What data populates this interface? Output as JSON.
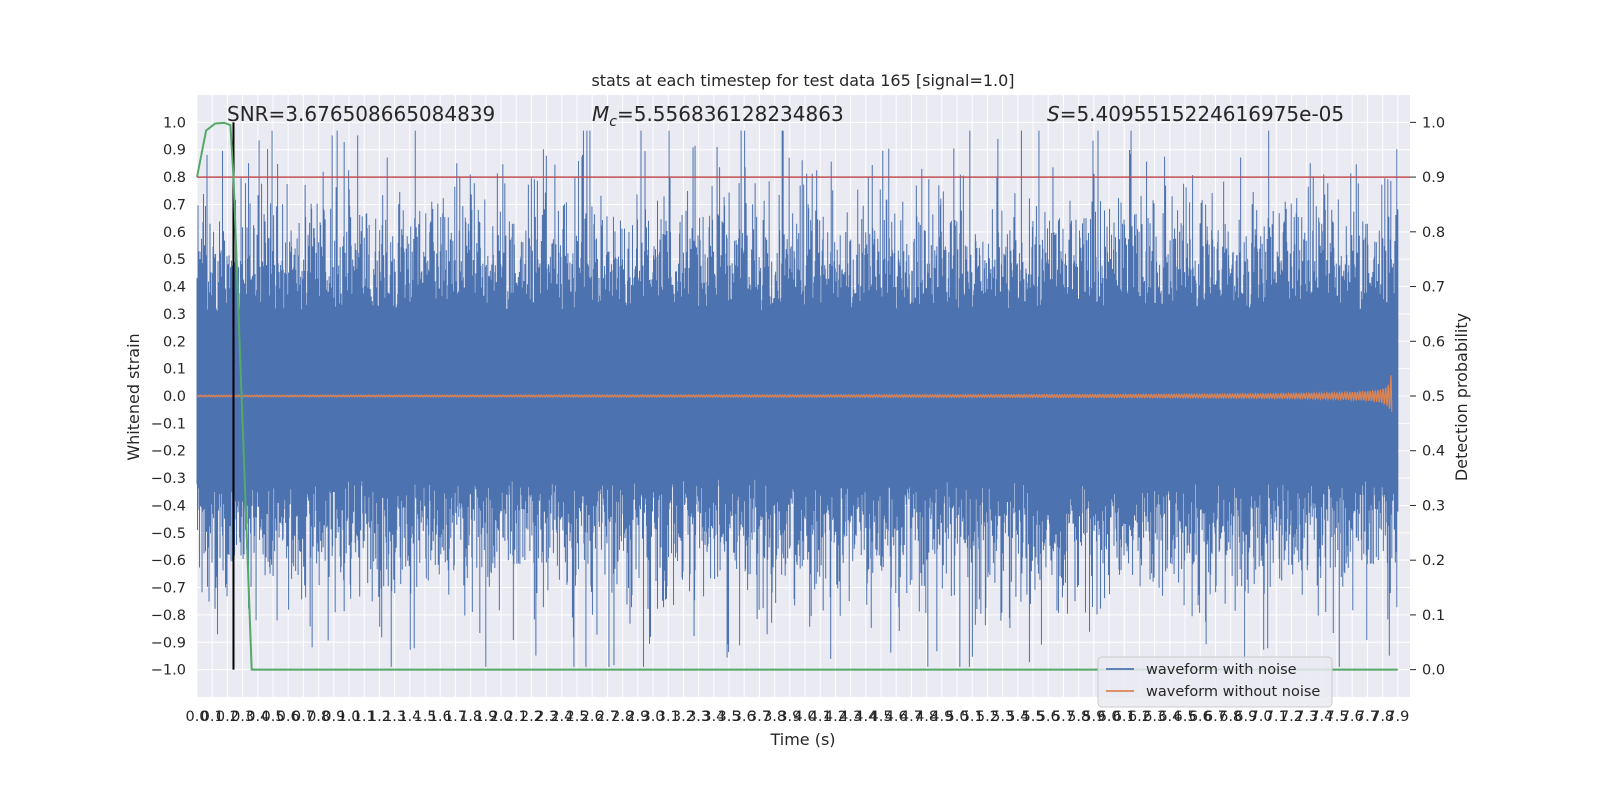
{
  "chart_data": {
    "type": "line",
    "title": "stats at each timestep for test data 165 [signal=1.0]",
    "xlabel": "Time (s)",
    "ylabel_left": "Whitened strain",
    "ylabel_right": "Detection probability",
    "xlim": [
      0.0,
      7.98
    ],
    "ylim_left": [
      -1.1,
      1.1
    ],
    "ylim_right": [
      -0.05,
      1.05
    ],
    "x_ticks": [
      0.0,
      0.1,
      0.2,
      0.3,
      0.4,
      0.5,
      0.6,
      0.7,
      0.8,
      0.9,
      1.0,
      1.1,
      1.2,
      1.3,
      1.4,
      1.5,
      1.6,
      1.7,
      1.8,
      1.9,
      2.0,
      2.1,
      2.2,
      2.3,
      2.4,
      2.5,
      2.6,
      2.7,
      2.8,
      2.9,
      3.0,
      3.1,
      3.2,
      3.3,
      3.4,
      3.5,
      3.6,
      3.7,
      3.8,
      3.9,
      4.0,
      4.1,
      4.2,
      4.3,
      4.4,
      4.5,
      4.6,
      4.7,
      4.8,
      4.9,
      5.0,
      5.1,
      5.2,
      5.3,
      5.4,
      5.5,
      5.6,
      5.7,
      5.8,
      5.9,
      6.0,
      6.1,
      6.2,
      6.3,
      6.4,
      6.5,
      6.6,
      6.7,
      6.8,
      6.9,
      7.0,
      7.1,
      7.2,
      7.3,
      7.4,
      7.5,
      7.6,
      7.7,
      7.8,
      7.9
    ],
    "x_tick_labels": [
      "0.0",
      "0.1",
      "0.2",
      "0.3",
      "0.4",
      "0.5",
      "0.6",
      "0.7",
      "0.8",
      "0.9",
      "1.0",
      "1.1",
      "1.2",
      "1.3",
      "1.4",
      "1.5",
      "1.6",
      "1.7",
      "1.8",
      "1.9",
      "2.0",
      "2.1",
      "2.2",
      "2.3",
      "2.4",
      "2.5",
      "2.6",
      "2.7",
      "2.8",
      "2.9",
      "3.0",
      "3.1",
      "3.2",
      "3.3",
      "3.4",
      "3.5",
      "3.6",
      "3.7",
      "3.8",
      "3.9",
      "4.0",
      "4.1",
      "4.2",
      "4.3",
      "4.4",
      "4.5",
      "4.6",
      "4.7",
      "4.8",
      "4.9",
      "5.0",
      "5.1",
      "5.2",
      "5.3",
      "5.4",
      "5.5",
      "5.6",
      "5.7",
      "5.8",
      "5.9",
      "6.0",
      "6.1",
      "6.2",
      "6.3",
      "6.4",
      "6.5",
      "6.6",
      "6.7",
      "6.8",
      "6.9",
      "7.0",
      "7.1",
      "7.2",
      "7.3",
      "7.4",
      "7.5",
      "7.6",
      "7.7",
      "7.8",
      "7.9"
    ],
    "y_ticks_left": [
      -1.0,
      -0.9,
      -0.8,
      -0.7,
      -0.6,
      -0.5,
      -0.4,
      -0.3,
      -0.2,
      -0.1,
      0.0,
      0.1,
      0.2,
      0.3,
      0.4,
      0.5,
      0.6,
      0.7,
      0.8,
      0.9,
      1.0
    ],
    "y_tick_labels_left": [
      "−1.0",
      "−0.9",
      "−0.8",
      "−0.7",
      "−0.6",
      "−0.5",
      "−0.4",
      "−0.3",
      "−0.2",
      "−0.1",
      "0.0",
      "0.1",
      "0.2",
      "0.3",
      "0.4",
      "0.5",
      "0.6",
      "0.7",
      "0.8",
      "0.9",
      "1.0"
    ],
    "y_ticks_right": [
      0.0,
      0.1,
      0.2,
      0.3,
      0.4,
      0.5,
      0.6,
      0.7,
      0.8,
      0.9,
      1.0
    ],
    "y_tick_labels_right": [
      "0.0",
      "0.1",
      "0.2",
      "0.3",
      "0.4",
      "0.5",
      "0.6",
      "0.7",
      "0.8",
      "0.9",
      "1.0"
    ],
    "annotations": {
      "snr": "SNR=3.676508665084839",
      "mc_symbol": "M",
      "mc_subscript": "c",
      "mc_value": "=5.556836128234863",
      "s_symbol": "S",
      "s_value": "=5.4095515224616975e-05"
    },
    "series": [
      {
        "name": "waveform with noise",
        "color": "#4c72b0",
        "description_values": "dense noise ~N(0,0.25) clipped to ±1",
        "envelope": {
          "typical_abs_max": 0.45,
          "peak_max": 0.97,
          "peak_min": -0.99
        }
      },
      {
        "name": "waveform without noise",
        "color": "#dd8452",
        "chirp": {
          "t_start": 0.0,
          "t_merger": 7.86,
          "amplitude_start": 0.003,
          "amplitude_peak": 0.09
        }
      },
      {
        "color": "#55a868",
        "axis": "right",
        "x": [
          0.0,
          0.06,
          0.12,
          0.18,
          0.22,
          0.24,
          0.36,
          0.5,
          1.0,
          2.0,
          3.0,
          4.0,
          5.0,
          6.0,
          7.0,
          7.9
        ],
        "y": [
          0.9,
          0.985,
          0.998,
          0.999,
          0.995,
          0.9,
          0.0,
          0.0,
          0.0,
          0.0,
          0.0,
          0.0,
          0.0,
          0.0,
          0.0,
          0.0
        ]
      }
    ],
    "threshold_right": 0.9,
    "threshold_color": "#c44e52",
    "marker_x": 0.24,
    "marker_color": "#000000",
    "legend": {
      "placement": "lower-right",
      "entries": [
        {
          "label": "waveform with noise",
          "color": "#4c72b0"
        },
        {
          "label": "waveform without noise",
          "color": "#dd8452"
        }
      ]
    },
    "grid": true,
    "background_color": "#eaeaf2"
  }
}
